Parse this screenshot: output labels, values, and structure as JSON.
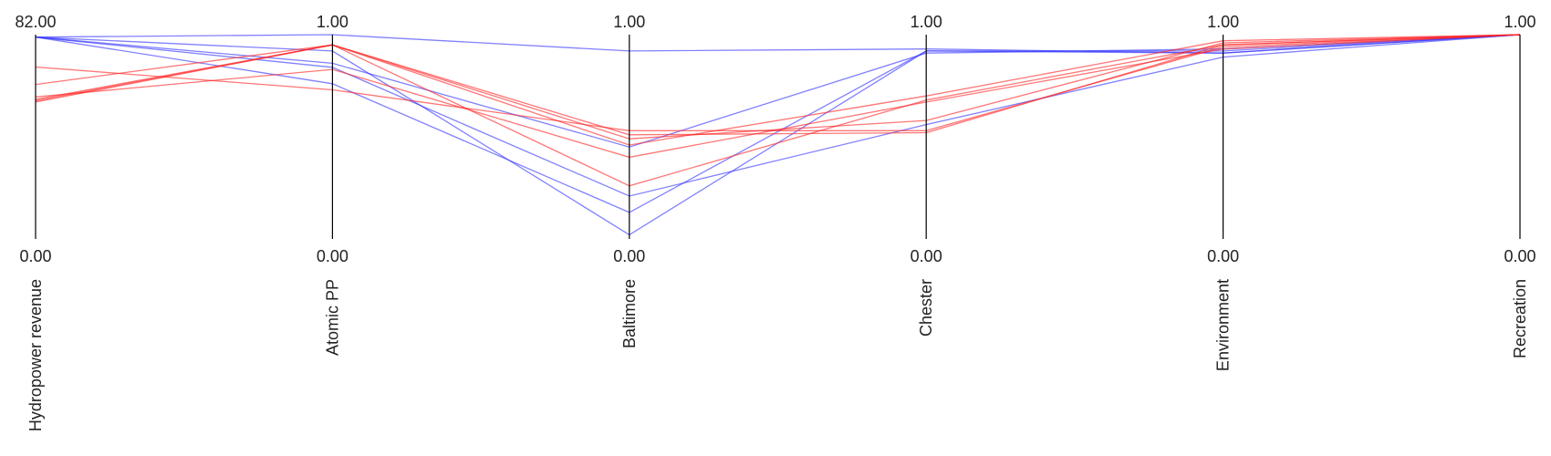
{
  "chart_data": {
    "type": "parallel-coordinates",
    "axes": [
      {
        "name": "Hydropower revenue",
        "max_label": "82.00",
        "min_label": "0.00",
        "range": [
          0,
          82
        ]
      },
      {
        "name": "Atomic PP",
        "max_label": "1.00",
        "min_label": "0.00",
        "range": [
          0,
          1
        ]
      },
      {
        "name": "Baltimore",
        "max_label": "1.00",
        "min_label": "0.00",
        "range": [
          0,
          1
        ]
      },
      {
        "name": "Chester",
        "max_label": "1.00",
        "min_label": "0.00",
        "range": [
          0,
          1
        ]
      },
      {
        "name": "Environment",
        "max_label": "1.00",
        "min_label": "0.00",
        "range": [
          0,
          1
        ]
      },
      {
        "name": "Recreation",
        "max_label": "1.00",
        "min_label": "0.00",
        "range": [
          0,
          1
        ]
      }
    ],
    "colors": {
      "blue": "#3333ff",
      "red": "#ff2222"
    },
    "series": [
      {
        "color": "blue",
        "values": [
          81.0,
          1.0,
          0.92,
          0.93,
          0.91,
          1.0
        ]
      },
      {
        "color": "blue",
        "values": [
          81.0,
          0.86,
          0.45,
          0.91,
          0.93,
          1.0
        ]
      },
      {
        "color": "blue",
        "values": [
          81.0,
          0.92,
          0.02,
          0.92,
          0.92,
          1.0
        ]
      },
      {
        "color": "blue",
        "values": [
          81.0,
          0.76,
          0.13,
          0.92,
          0.91,
          1.0
        ]
      },
      {
        "color": "blue",
        "values": [
          81.0,
          0.84,
          0.21,
          0.56,
          0.89,
          1.0
        ]
      },
      {
        "color": "red",
        "values": [
          62.0,
          0.95,
          0.49,
          0.58,
          0.96,
          1.0
        ]
      },
      {
        "color": "red",
        "values": [
          56.0,
          0.95,
          0.51,
          0.52,
          0.95,
          1.0
        ]
      },
      {
        "color": "red",
        "values": [
          55.0,
          0.95,
          0.26,
          0.68,
          0.95,
          1.0
        ]
      },
      {
        "color": "red",
        "values": [
          69.0,
          0.73,
          0.53,
          0.53,
          0.94,
          1.0
        ]
      },
      {
        "color": "red",
        "values": [
          57.0,
          0.83,
          0.4,
          0.67,
          0.93,
          1.0
        ]
      },
      {
        "color": "red",
        "values": [
          55.5,
          0.95,
          0.46,
          0.7,
          0.97,
          1.0
        ]
      }
    ]
  }
}
